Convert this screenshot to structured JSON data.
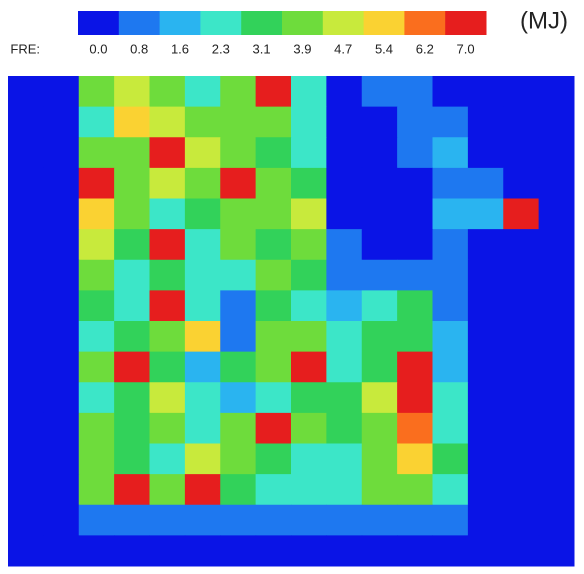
{
  "chart_data": {
    "type": "heatmap",
    "colorbar": {
      "label": "FRE:",
      "unit": "(MJ)",
      "ticks": [
        {
          "value": 0,
          "label": "0.0"
        },
        0.8,
        1.6,
        2.3,
        3.1,
        3.9,
        4.7,
        5.4,
        6.2,
        {
          "value": 7,
          "label": "7.0"
        }
      ],
      "colors": [
        "#0a14e6",
        "#1e78f0",
        "#2ab4f0",
        "#3ce6c8",
        "#32d25a",
        "#6edc3c",
        "#c8ea3c",
        "#fad232",
        "#fa6e1e",
        "#e61e1e"
      ]
    },
    "z": [
      [
        0,
        0,
        4.5,
        5,
        4,
        3,
        4,
        7,
        3,
        0,
        1,
        1.5,
        0,
        0,
        0,
        0
      ],
      [
        0,
        0,
        3,
        5.5,
        5,
        4,
        4,
        4.5,
        3,
        0,
        0,
        1.5,
        1.5,
        0,
        0,
        0
      ],
      [
        0,
        0,
        4.5,
        4.5,
        7,
        5,
        4,
        3.5,
        3,
        0,
        0,
        1,
        2,
        0,
        0,
        0
      ],
      [
        0,
        0,
        7,
        4,
        5,
        4.5,
        7,
        4,
        3.5,
        0,
        0,
        0,
        1.5,
        1,
        0,
        0
      ],
      [
        0,
        0,
        6,
        4,
        3,
        3.5,
        4,
        4.5,
        5,
        0.5,
        0,
        0,
        2,
        2,
        7,
        0
      ],
      [
        0,
        0,
        5,
        3.5,
        7,
        3,
        4,
        3.5,
        4,
        1,
        0,
        0,
        1.5,
        0,
        0,
        0
      ],
      [
        0,
        0,
        4,
        3,
        3.5,
        2.5,
        3,
        4,
        3.5,
        1,
        1,
        1.5,
        1,
        0,
        0,
        0
      ],
      [
        0,
        0,
        3.5,
        3,
        7,
        3,
        1,
        3.5,
        3,
        2,
        2.5,
        3.5,
        1.5,
        0,
        0,
        0
      ],
      [
        0,
        0,
        3,
        3.5,
        4,
        5.5,
        1.5,
        4,
        4.5,
        2.5,
        3.5,
        3.5,
        2,
        0,
        0,
        0
      ],
      [
        0,
        0,
        4,
        7,
        3.5,
        2,
        3.5,
        4,
        7,
        3,
        3.5,
        7,
        2,
        0,
        0,
        0
      ],
      [
        0,
        0,
        3,
        3.5,
        5,
        3,
        2,
        3,
        3.5,
        3.5,
        5,
        7,
        3,
        0,
        0,
        0
      ],
      [
        0,
        0,
        4,
        3.5,
        4.5,
        3,
        4,
        7,
        4,
        3.5,
        4,
        6.5,
        3,
        0,
        0,
        0
      ],
      [
        0,
        0,
        4.5,
        3.5,
        3,
        5,
        4,
        3.5,
        3,
        3,
        4.5,
        6,
        3.5,
        0,
        0,
        0
      ],
      [
        0,
        0,
        4,
        7,
        4,
        7,
        3.5,
        3,
        3,
        3,
        4,
        4,
        3,
        0,
        0,
        0
      ],
      [
        0,
        0,
        1,
        1.5,
        1.5,
        1,
        1,
        1,
        1,
        1,
        1,
        1,
        1,
        0,
        0,
        0
      ],
      [
        0,
        0,
        0,
        0,
        0,
        0,
        0,
        0,
        0,
        0,
        0,
        0,
        0,
        0,
        0,
        0
      ]
    ]
  }
}
